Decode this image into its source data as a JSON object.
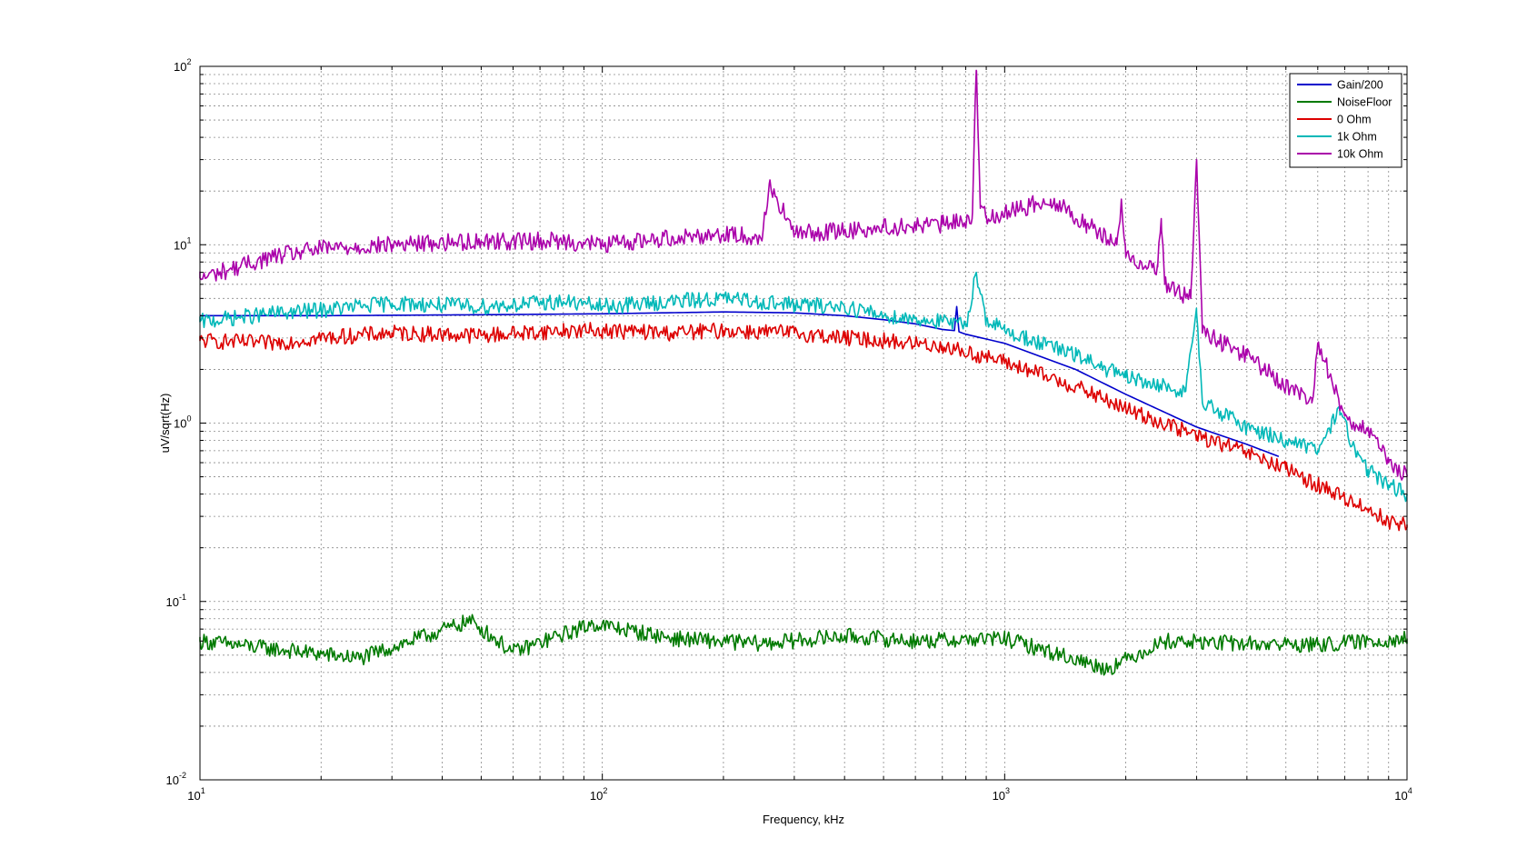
{
  "chart_data": {
    "type": "line",
    "scale": "log-log",
    "title": "",
    "xlabel": "Frequency, kHz",
    "ylabel": "uV/sqrt(Hz)",
    "xlim": [
      10,
      10000
    ],
    "ylim": [
      0.01,
      100
    ],
    "grid": true,
    "legend_position": "top-right",
    "x_ticks": [
      {
        "base": "10",
        "exp": "1",
        "value": 10
      },
      {
        "base": "10",
        "exp": "2",
        "value": 100
      },
      {
        "base": "10",
        "exp": "3",
        "value": 1000
      },
      {
        "base": "10",
        "exp": "4",
        "value": 10000
      }
    ],
    "y_ticks": [
      {
        "base": "10",
        "exp": "-2",
        "value": 0.01
      },
      {
        "base": "10",
        "exp": "-1",
        "value": 0.1
      },
      {
        "base": "10",
        "exp": "0",
        "value": 1
      },
      {
        "base": "10",
        "exp": "1",
        "value": 10
      },
      {
        "base": "10",
        "exp": "2",
        "value": 100
      }
    ],
    "series": [
      {
        "name": "Gain/200",
        "color": "#0000cc",
        "x": [
          10,
          20,
          50,
          100,
          200,
          300,
          400,
          500,
          600,
          700,
          750,
          760,
          770,
          800,
          1000,
          1500,
          2000,
          3000,
          4000,
          4800
        ],
        "y": [
          4.0,
          4.0,
          4.05,
          4.1,
          4.2,
          4.15,
          4.0,
          3.8,
          3.6,
          3.35,
          3.3,
          4.5,
          3.25,
          3.15,
          2.8,
          2.0,
          1.45,
          0.95,
          0.76,
          0.65
        ]
      },
      {
        "name": "NoiseFloor",
        "color": "#007a00",
        "x": [
          10,
          25,
          47,
          60,
          95,
          150,
          250,
          400,
          600,
          1000,
          1800,
          2500,
          4000,
          6000,
          10000
        ],
        "y": [
          0.06,
          0.048,
          0.078,
          0.052,
          0.075,
          0.062,
          0.058,
          0.064,
          0.06,
          0.062,
          0.042,
          0.06,
          0.058,
          0.057,
          0.062
        ]
      },
      {
        "name": "0 Ohm",
        "color": "#dd0000",
        "x": [
          10,
          15,
          20,
          30,
          50,
          80,
          100,
          150,
          200,
          300,
          400,
          500,
          700,
          1000,
          1500,
          2000,
          3000,
          4000,
          5000,
          6000,
          7000,
          8000,
          9000,
          10000
        ],
        "y": [
          2.9,
          2.8,
          3.0,
          3.2,
          3.1,
          3.3,
          3.3,
          3.2,
          3.3,
          3.2,
          3.0,
          2.9,
          2.7,
          2.2,
          1.6,
          1.2,
          0.85,
          0.68,
          0.55,
          0.45,
          0.38,
          0.33,
          0.28,
          0.27
        ]
      },
      {
        "name": "1k Ohm",
        "color": "#00b8b8",
        "x": [
          10,
          15,
          20,
          30,
          50,
          80,
          100,
          150,
          200,
          300,
          400,
          500,
          700,
          800,
          850,
          900,
          1000,
          1500,
          2000,
          2800,
          3000,
          3100,
          4000,
          5000,
          6000,
          6800,
          7500,
          8000,
          9000,
          10000
        ],
        "y": [
          3.7,
          4.1,
          4.3,
          4.7,
          4.5,
          4.8,
          4.5,
          4.8,
          5.0,
          4.6,
          4.5,
          4.0,
          3.7,
          3.5,
          7.0,
          3.8,
          3.3,
          2.4,
          1.8,
          1.5,
          4.1,
          1.3,
          0.95,
          0.8,
          0.7,
          1.2,
          0.65,
          0.55,
          0.45,
          0.4
        ]
      },
      {
        "name": "10k Ohm",
        "color": "#aa00aa",
        "x": [
          10,
          15,
          20,
          30,
          50,
          80,
          100,
          150,
          200,
          250,
          260,
          300,
          400,
          500,
          700,
          830,
          850,
          870,
          900,
          1000,
          1300,
          1600,
          1900,
          1950,
          2000,
          2400,
          2450,
          2500,
          2900,
          3000,
          3100,
          4000,
          5000,
          5800,
          6000,
          7000,
          8000,
          9000,
          10000
        ],
        "y": [
          6.5,
          8.5,
          9.5,
          10.0,
          10.5,
          10.5,
          10.0,
          11.0,
          11.5,
          11.0,
          22.0,
          11.5,
          12.0,
          12.5,
          13.0,
          14.0,
          95.0,
          16.0,
          14.5,
          15.0,
          18.0,
          13.0,
          10.0,
          18.0,
          8.5,
          7.5,
          14.0,
          6.0,
          5.0,
          30.0,
          3.2,
          2.4,
          1.6,
          1.3,
          2.8,
          1.1,
          0.9,
          0.6,
          0.5
        ]
      }
    ]
  }
}
